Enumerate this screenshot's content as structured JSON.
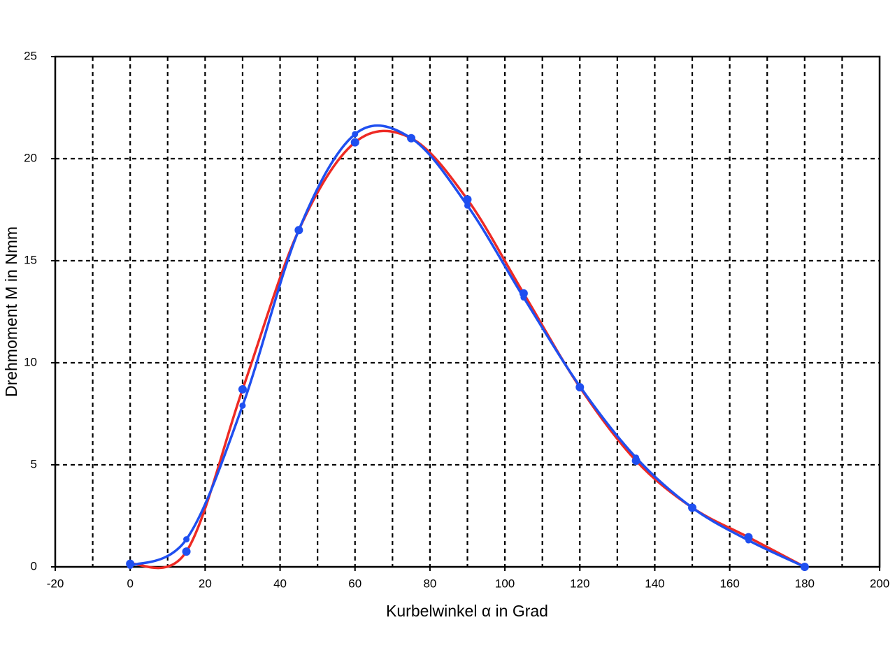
{
  "chart_data": {
    "type": "line",
    "smooth": true,
    "x_label": "Kurbelwinkel α in Grad",
    "y_label": "Drehmoment M in Nmm",
    "xlim": [
      -20,
      200
    ],
    "xticks": [
      -20,
      0,
      20,
      40,
      60,
      80,
      100,
      120,
      140,
      160,
      180,
      200
    ],
    "xgrid": [
      -10,
      0,
      10,
      20,
      30,
      40,
      50,
      60,
      70,
      80,
      90,
      100,
      110,
      120,
      130,
      140,
      150,
      160,
      170,
      180,
      190
    ],
    "ylim": [
      0,
      25
    ],
    "yticks": [
      0,
      5,
      10,
      15,
      20,
      25
    ],
    "ygrid": [
      5,
      10,
      15,
      20
    ],
    "grid": true,
    "series": [
      {
        "color": "#ee2a24",
        "marker_color": "#1f4ff0",
        "marker_size": 6,
        "x": [
          0,
          15,
          30,
          45,
          60,
          75,
          90,
          105,
          120,
          135,
          150,
          165,
          180
        ],
        "values": [
          0.15,
          0.75,
          8.7,
          16.5,
          20.8,
          21.0,
          18.0,
          13.4,
          8.8,
          5.2,
          2.9,
          1.45,
          0
        ]
      },
      {
        "color": "#1f4ff0",
        "marker_color": "#1f4ff0",
        "marker_size": 4.5,
        "x": [
          0,
          15,
          30,
          45,
          60,
          75,
          90,
          105,
          120,
          135,
          150,
          165,
          180
        ],
        "values": [
          0.05,
          1.35,
          7.9,
          16.5,
          21.2,
          21.0,
          17.7,
          13.2,
          8.85,
          5.35,
          2.9,
          1.3,
          0
        ]
      }
    ]
  }
}
